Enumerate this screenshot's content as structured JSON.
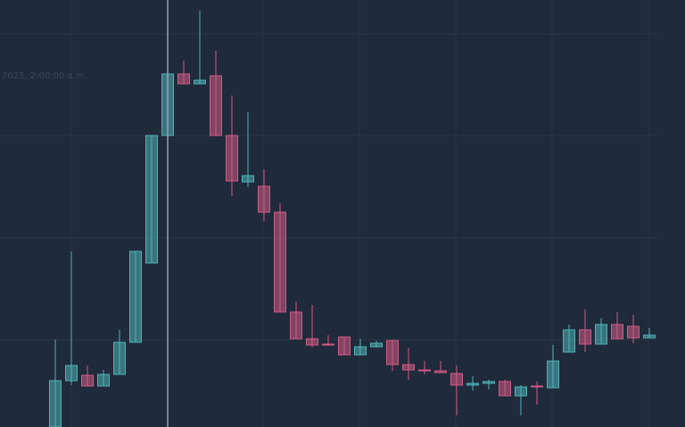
{
  "chart_data": {
    "type": "candlestick",
    "legend_text": "2025, 2:00:00 a.m.",
    "ylim": [
      0,
      479
    ],
    "up_color": "#4fb3b8",
    "down_color": "#d15b85",
    "open": [
      0,
      52,
      58,
      46,
      59,
      95,
      184,
      327,
      396,
      385,
      394,
      327,
      275,
      270,
      241,
      129,
      99,
      93,
      101,
      81,
      90,
      97,
      70,
      64,
      63,
      60,
      47,
      49,
      51,
      35,
      46,
      44,
      84,
      109,
      93,
      115,
      113,
      100
    ],
    "high": [
      98,
      197,
      69,
      64,
      109,
      197,
      327,
      396,
      411,
      467,
      422,
      372,
      353,
      289,
      251,
      141,
      137,
      103,
      101,
      99,
      97,
      97,
      89,
      74,
      74,
      69,
      57,
      53,
      53,
      47,
      51,
      92,
      115,
      132,
      122,
      129,
      126,
      111
    ],
    "low": [
      0,
      47,
      46,
      46,
      59,
      95,
      184,
      327,
      385,
      385,
      327,
      259,
      269,
      231,
      129,
      99,
      89,
      91,
      81,
      81,
      89,
      63,
      53,
      59,
      61,
      13,
      41,
      42,
      35,
      13,
      25,
      44,
      84,
      84,
      93,
      99,
      94,
      100
    ],
    "close": [
      52,
      69,
      46,
      59,
      95,
      197,
      327,
      396,
      385,
      389,
      327,
      276,
      282,
      241,
      129,
      99,
      92,
      92,
      81,
      90,
      94,
      70,
      64,
      63,
      61,
      47,
      49,
      51,
      35,
      45,
      45,
      74,
      109,
      93,
      115,
      99,
      100,
      103
    ]
  }
}
